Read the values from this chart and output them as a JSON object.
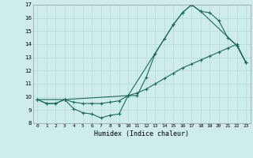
{
  "xlabel": "Humidex (Indice chaleur)",
  "background_color": "#ceecea",
  "grid_color": "#b8dbd8",
  "line_color": "#1a6b5a",
  "xlim": [
    -0.5,
    23.5
  ],
  "ylim": [
    8,
    17
  ],
  "xticks": [
    0,
    1,
    2,
    3,
    4,
    5,
    6,
    7,
    8,
    9,
    10,
    11,
    12,
    13,
    14,
    15,
    16,
    17,
    18,
    19,
    20,
    21,
    22,
    23
  ],
  "yticks": [
    8,
    9,
    10,
    11,
    12,
    13,
    14,
    15,
    16,
    17
  ],
  "line1_x": [
    0,
    1,
    2,
    3,
    4,
    5,
    6,
    7,
    8,
    9,
    10,
    11,
    12,
    13,
    14,
    15,
    16,
    17,
    18,
    19,
    20,
    21,
    22,
    23
  ],
  "line1_y": [
    9.8,
    9.5,
    9.5,
    9.8,
    9.1,
    8.8,
    8.7,
    8.4,
    8.6,
    8.7,
    10.1,
    10.1,
    11.5,
    13.3,
    14.4,
    15.5,
    16.4,
    17.0,
    16.5,
    16.4,
    15.8,
    14.5,
    13.9,
    12.6
  ],
  "line2_x": [
    0,
    1,
    2,
    3,
    4,
    5,
    6,
    7,
    8,
    9,
    10,
    11,
    12,
    13,
    14,
    15,
    16,
    17,
    18,
    19,
    20,
    21,
    22,
    23
  ],
  "line2_y": [
    9.8,
    9.5,
    9.5,
    9.8,
    9.6,
    9.5,
    9.5,
    9.5,
    9.6,
    9.7,
    10.1,
    10.3,
    10.6,
    11.0,
    11.4,
    11.8,
    12.2,
    12.5,
    12.8,
    13.1,
    13.4,
    13.7,
    14.0,
    12.6
  ],
  "line3_x": [
    0,
    3,
    10,
    15,
    16,
    17,
    18,
    22,
    23
  ],
  "line3_y": [
    9.8,
    9.8,
    10.1,
    15.5,
    16.4,
    17.0,
    16.5,
    13.9,
    12.6
  ]
}
